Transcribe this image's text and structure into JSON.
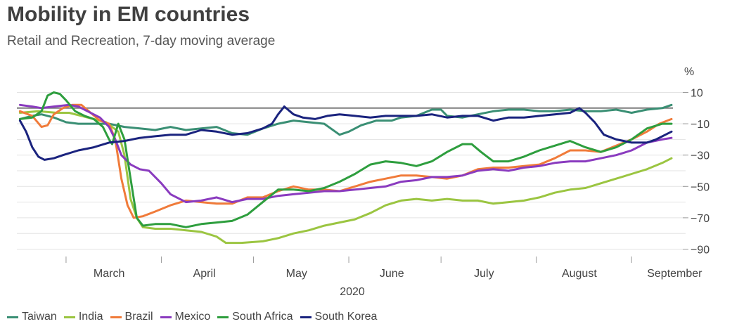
{
  "header": {
    "title": "Mobility in EM countries",
    "subtitle": "Retail and Recreation, 7-day moving average"
  },
  "chart_data": {
    "type": "line",
    "title": "Mobility in EM countries",
    "subtitle": "Retail and Recreation, 7-day moving average",
    "ylabel": "%",
    "xlabel": "2020",
    "ylim": [
      -95,
      12
    ],
    "xlim": [
      45,
      258
    ],
    "y_ticks": [
      10,
      -10,
      -30,
      -50,
      -70,
      -90
    ],
    "y_tick_labels": [
      "10",
      "−10",
      "−30",
      "−50",
      "−70",
      "−90"
    ],
    "x_month_labels": [
      {
        "label": "March",
        "day": 75
      },
      {
        "label": "April",
        "day": 106
      },
      {
        "label": "May",
        "day": 136
      },
      {
        "label": "June",
        "day": 167
      },
      {
        "label": "July",
        "day": 197
      },
      {
        "label": "August",
        "day": 228
      },
      {
        "label": "September",
        "day": 259
      }
    ],
    "x_month_boundaries": [
      61,
      92,
      122,
      153,
      183,
      214,
      245
    ],
    "year_label": "2020",
    "zero_line": 0,
    "grid": true,
    "legend_position": "bottom",
    "series": [
      {
        "name": "Taiwan",
        "color": "#3a8f74",
        "points": [
          [
            46,
            -7
          ],
          [
            50,
            -5
          ],
          [
            53,
            -4
          ],
          [
            57,
            -6
          ],
          [
            61,
            -9
          ],
          [
            65,
            -10
          ],
          [
            70,
            -10
          ],
          [
            75,
            -10
          ],
          [
            80,
            -12
          ],
          [
            85,
            -13
          ],
          [
            90,
            -14
          ],
          [
            95,
            -12
          ],
          [
            100,
            -14
          ],
          [
            105,
            -13
          ],
          [
            110,
            -12
          ],
          [
            115,
            -16
          ],
          [
            120,
            -17
          ],
          [
            125,
            -13
          ],
          [
            130,
            -10
          ],
          [
            135,
            -8
          ],
          [
            140,
            -9
          ],
          [
            145,
            -10
          ],
          [
            150,
            -17
          ],
          [
            153,
            -15
          ],
          [
            157,
            -11
          ],
          [
            162,
            -8
          ],
          [
            167,
            -8
          ],
          [
            170,
            -6
          ],
          [
            175,
            -5
          ],
          [
            180,
            -1
          ],
          [
            183,
            -1
          ],
          [
            185,
            -5
          ],
          [
            190,
            -6
          ],
          [
            195,
            -4
          ],
          [
            200,
            -2
          ],
          [
            205,
            -1
          ],
          [
            210,
            -1
          ],
          [
            215,
            -2
          ],
          [
            220,
            -2
          ],
          [
            225,
            -1
          ],
          [
            230,
            -2
          ],
          [
            235,
            -2
          ],
          [
            240,
            -1
          ],
          [
            245,
            -3
          ],
          [
            250,
            -1
          ],
          [
            255,
            0
          ],
          [
            258,
            2
          ]
        ]
      },
      {
        "name": "India",
        "color": "#9bc541",
        "points": [
          [
            46,
            -3
          ],
          [
            52,
            -2
          ],
          [
            58,
            -3
          ],
          [
            62,
            -3
          ],
          [
            66,
            -5
          ],
          [
            70,
            -7
          ],
          [
            74,
            -9
          ],
          [
            78,
            -15
          ],
          [
            80,
            -30
          ],
          [
            82,
            -58
          ],
          [
            84,
            -70
          ],
          [
            86,
            -76
          ],
          [
            90,
            -77
          ],
          [
            95,
            -77
          ],
          [
            100,
            -78
          ],
          [
            105,
            -79
          ],
          [
            110,
            -82
          ],
          [
            113,
            -86
          ],
          [
            118,
            -86
          ],
          [
            125,
            -85
          ],
          [
            130,
            -83
          ],
          [
            135,
            -80
          ],
          [
            140,
            -78
          ],
          [
            145,
            -75
          ],
          [
            150,
            -73
          ],
          [
            155,
            -71
          ],
          [
            160,
            -67
          ],
          [
            165,
            -62
          ],
          [
            170,
            -59
          ],
          [
            175,
            -58
          ],
          [
            180,
            -59
          ],
          [
            185,
            -58
          ],
          [
            190,
            -59
          ],
          [
            195,
            -59
          ],
          [
            200,
            -61
          ],
          [
            205,
            -60
          ],
          [
            210,
            -59
          ],
          [
            215,
            -57
          ],
          [
            220,
            -54
          ],
          [
            225,
            -52
          ],
          [
            230,
            -51
          ],
          [
            235,
            -48
          ],
          [
            240,
            -45
          ],
          [
            245,
            -42
          ],
          [
            250,
            -39
          ],
          [
            255,
            -35
          ],
          [
            258,
            -32
          ]
        ]
      },
      {
        "name": "Brazil",
        "color": "#f07b3a",
        "points": [
          [
            46,
            -2
          ],
          [
            50,
            -5
          ],
          [
            53,
            -12
          ],
          [
            55,
            -11
          ],
          [
            57,
            -4
          ],
          [
            60,
            0
          ],
          [
            63,
            2
          ],
          [
            66,
            2
          ],
          [
            69,
            -3
          ],
          [
            72,
            -8
          ],
          [
            75,
            -10
          ],
          [
            77,
            -20
          ],
          [
            79,
            -45
          ],
          [
            81,
            -62
          ],
          [
            83,
            -70
          ],
          [
            86,
            -69
          ],
          [
            90,
            -66
          ],
          [
            95,
            -62
          ],
          [
            100,
            -59
          ],
          [
            105,
            -60
          ],
          [
            110,
            -61
          ],
          [
            115,
            -61
          ],
          [
            120,
            -57
          ],
          [
            125,
            -57
          ],
          [
            130,
            -53
          ],
          [
            135,
            -50
          ],
          [
            140,
            -52
          ],
          [
            145,
            -52
          ],
          [
            150,
            -53
          ],
          [
            155,
            -50
          ],
          [
            160,
            -47
          ],
          [
            165,
            -45
          ],
          [
            170,
            -43
          ],
          [
            175,
            -43
          ],
          [
            180,
            -44
          ],
          [
            185,
            -45
          ],
          [
            190,
            -43
          ],
          [
            195,
            -39
          ],
          [
            200,
            -38
          ],
          [
            205,
            -38
          ],
          [
            210,
            -37
          ],
          [
            215,
            -36
          ],
          [
            220,
            -32
          ],
          [
            225,
            -27
          ],
          [
            230,
            -27
          ],
          [
            235,
            -28
          ],
          [
            240,
            -24
          ],
          [
            245,
            -20
          ],
          [
            250,
            -15
          ],
          [
            254,
            -10
          ],
          [
            258,
            -7
          ]
        ]
      },
      {
        "name": "Mexico",
        "color": "#8a3bbf",
        "points": [
          [
            46,
            2
          ],
          [
            50,
            1
          ],
          [
            53,
            0
          ],
          [
            57,
            1
          ],
          [
            62,
            2
          ],
          [
            65,
            1
          ],
          [
            68,
            -2
          ],
          [
            72,
            -6
          ],
          [
            75,
            -12
          ],
          [
            77,
            -20
          ],
          [
            79,
            -30
          ],
          [
            82,
            -36
          ],
          [
            85,
            -39
          ],
          [
            88,
            -40
          ],
          [
            92,
            -48
          ],
          [
            95,
            -55
          ],
          [
            100,
            -60
          ],
          [
            105,
            -59
          ],
          [
            110,
            -57
          ],
          [
            115,
            -60
          ],
          [
            120,
            -58
          ],
          [
            125,
            -58
          ],
          [
            130,
            -56
          ],
          [
            135,
            -55
          ],
          [
            140,
            -54
          ],
          [
            145,
            -53
          ],
          [
            150,
            -53
          ],
          [
            155,
            -52
          ],
          [
            160,
            -51
          ],
          [
            165,
            -50
          ],
          [
            170,
            -47
          ],
          [
            175,
            -46
          ],
          [
            180,
            -44
          ],
          [
            185,
            -44
          ],
          [
            190,
            -43
          ],
          [
            195,
            -40
          ],
          [
            200,
            -39
          ],
          [
            205,
            -40
          ],
          [
            210,
            -38
          ],
          [
            215,
            -37
          ],
          [
            220,
            -35
          ],
          [
            225,
            -34
          ],
          [
            230,
            -34
          ],
          [
            235,
            -32
          ],
          [
            240,
            -30
          ],
          [
            245,
            -27
          ],
          [
            250,
            -22
          ],
          [
            255,
            -20
          ],
          [
            258,
            -19
          ]
        ]
      },
      {
        "name": "South Africa",
        "color": "#2e9e3e",
        "points": [
          [
            46,
            -7
          ],
          [
            50,
            -6
          ],
          [
            53,
            -2
          ],
          [
            55,
            8
          ],
          [
            57,
            10
          ],
          [
            59,
            9
          ],
          [
            61,
            5
          ],
          [
            64,
            -2
          ],
          [
            67,
            -5
          ],
          [
            70,
            -7
          ],
          [
            73,
            -12
          ],
          [
            75,
            -20
          ],
          [
            76,
            -23
          ],
          [
            78,
            -10
          ],
          [
            80,
            -20
          ],
          [
            82,
            -45
          ],
          [
            84,
            -70
          ],
          [
            86,
            -75
          ],
          [
            90,
            -74
          ],
          [
            95,
            -74
          ],
          [
            100,
            -76
          ],
          [
            105,
            -74
          ],
          [
            110,
            -73
          ],
          [
            115,
            -72
          ],
          [
            120,
            -68
          ],
          [
            125,
            -60
          ],
          [
            130,
            -52
          ],
          [
            135,
            -52
          ],
          [
            140,
            -53
          ],
          [
            145,
            -51
          ],
          [
            150,
            -47
          ],
          [
            155,
            -42
          ],
          [
            160,
            -36
          ],
          [
            165,
            -34
          ],
          [
            170,
            -35
          ],
          [
            175,
            -37
          ],
          [
            180,
            -34
          ],
          [
            185,
            -28
          ],
          [
            190,
            -23
          ],
          [
            193,
            -23
          ],
          [
            196,
            -28
          ],
          [
            200,
            -34
          ],
          [
            205,
            -34
          ],
          [
            210,
            -31
          ],
          [
            215,
            -27
          ],
          [
            220,
            -24
          ],
          [
            225,
            -21
          ],
          [
            230,
            -25
          ],
          [
            235,
            -28
          ],
          [
            240,
            -25
          ],
          [
            245,
            -20
          ],
          [
            250,
            -13
          ],
          [
            255,
            -10
          ],
          [
            258,
            -10
          ]
        ]
      },
      {
        "name": "South Korea",
        "color": "#1a237e",
        "points": [
          [
            46,
            -8
          ],
          [
            48,
            -15
          ],
          [
            50,
            -25
          ],
          [
            52,
            -31
          ],
          [
            54,
            -33
          ],
          [
            57,
            -32
          ],
          [
            60,
            -30
          ],
          [
            65,
            -27
          ],
          [
            70,
            -25
          ],
          [
            75,
            -22
          ],
          [
            80,
            -21
          ],
          [
            85,
            -19
          ],
          [
            90,
            -18
          ],
          [
            95,
            -17
          ],
          [
            100,
            -17
          ],
          [
            105,
            -14
          ],
          [
            110,
            -15
          ],
          [
            115,
            -17
          ],
          [
            120,
            -16
          ],
          [
            125,
            -13
          ],
          [
            128,
            -10
          ],
          [
            130,
            -4
          ],
          [
            132,
            1
          ],
          [
            135,
            -4
          ],
          [
            138,
            -6
          ],
          [
            142,
            -7
          ],
          [
            146,
            -5
          ],
          [
            150,
            -4
          ],
          [
            155,
            -5
          ],
          [
            160,
            -6
          ],
          [
            165,
            -5
          ],
          [
            170,
            -5
          ],
          [
            175,
            -5
          ],
          [
            180,
            -4
          ],
          [
            185,
            -6
          ],
          [
            190,
            -5
          ],
          [
            195,
            -5
          ],
          [
            200,
            -8
          ],
          [
            205,
            -6
          ],
          [
            210,
            -6
          ],
          [
            215,
            -5
          ],
          [
            220,
            -4
          ],
          [
            225,
            -3
          ],
          [
            228,
            0
          ],
          [
            230,
            -3
          ],
          [
            233,
            -9
          ],
          [
            236,
            -17
          ],
          [
            240,
            -20
          ],
          [
            245,
            -22
          ],
          [
            250,
            -22
          ],
          [
            253,
            -20
          ],
          [
            256,
            -17
          ],
          [
            258,
            -15
          ]
        ]
      }
    ]
  },
  "legend": {
    "items": [
      {
        "label": "Taiwan",
        "color": "#3a8f74"
      },
      {
        "label": "India",
        "color": "#9bc541"
      },
      {
        "label": "Brazil",
        "color": "#f07b3a"
      },
      {
        "label": "Mexico",
        "color": "#8a3bbf"
      },
      {
        "label": "South Africa",
        "color": "#2e9e3e"
      },
      {
        "label": "South Korea",
        "color": "#1a237e"
      }
    ]
  }
}
